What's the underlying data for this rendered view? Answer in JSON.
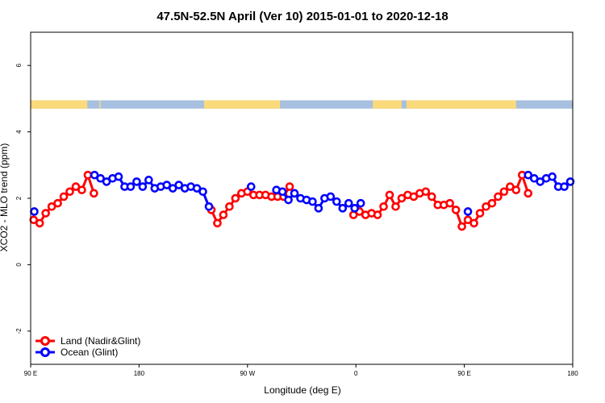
{
  "chart_data": {
    "type": "line",
    "title": "47.5N-52.5N April (Ver 10)   2015-01-01 to 2020-12-18",
    "xlabel": "Longitude (deg E)",
    "ylabel": "XCO2 - MLO trend (ppm)",
    "xlim": [
      90,
      540
    ],
    "ylim": [
      -3,
      7
    ],
    "x_ticks": [
      {
        "value": 90,
        "label": "90 E"
      },
      {
        "value": 180,
        "label": "180"
      },
      {
        "value": 270,
        "label": "90 W"
      },
      {
        "value": 360,
        "label": "0"
      },
      {
        "value": 450,
        "label": "90 E"
      },
      {
        "value": 540,
        "label": "180"
      }
    ],
    "y_ticks": [
      {
        "value": -2,
        "label": "-2"
      },
      {
        "value": 0,
        "label": "0"
      },
      {
        "value": 2,
        "label": "2"
      },
      {
        "value": 4,
        "label": "4"
      },
      {
        "value": 6,
        "label": "6"
      }
    ],
    "grid": false,
    "legend_position": "bottom-left",
    "series": [
      {
        "name": "Land (Nadir&Glint)",
        "color": "#ff0000",
        "points": [
          [
            92.5,
            1.35
          ],
          [
            97.5,
            1.25
          ],
          [
            102.5,
            1.55
          ],
          [
            107.5,
            1.75
          ],
          [
            112.5,
            1.85
          ],
          [
            117.5,
            2.05
          ],
          [
            122.5,
            2.2
          ],
          [
            127.5,
            2.35
          ],
          [
            132.5,
            2.25
          ],
          [
            137.5,
            2.7
          ],
          [
            142.5,
            2.15
          ],
          null,
          [
            240,
            1.65
          ],
          [
            245,
            1.25
          ],
          [
            250,
            1.5
          ],
          [
            255,
            1.75
          ],
          [
            260,
            2.0
          ],
          [
            265,
            2.15
          ],
          [
            270,
            2.2
          ],
          [
            275,
            2.1
          ],
          [
            280,
            2.1
          ],
          [
            285,
            2.1
          ],
          [
            290,
            2.05
          ],
          [
            295,
            2.05
          ],
          [
            300,
            2.05
          ],
          [
            305,
            2.35
          ],
          null,
          [
            358,
            1.5
          ],
          [
            363,
            1.6
          ],
          [
            368,
            1.5
          ],
          [
            373,
            1.55
          ],
          [
            378,
            1.5
          ],
          [
            383,
            1.75
          ],
          [
            388,
            2.1
          ],
          [
            393,
            1.75
          ],
          [
            398,
            2.0
          ],
          [
            403,
            2.1
          ],
          [
            408,
            2.05
          ],
          [
            413,
            2.15
          ],
          [
            418,
            2.2
          ],
          [
            423,
            2.05
          ],
          [
            428,
            1.8
          ],
          [
            433,
            1.8
          ],
          [
            438,
            1.85
          ],
          [
            443,
            1.65
          ],
          [
            448,
            1.15
          ],
          [
            453,
            1.35
          ],
          [
            458,
            1.25
          ],
          [
            463,
            1.55
          ],
          [
            468,
            1.75
          ],
          [
            473,
            1.85
          ],
          [
            478,
            2.05
          ],
          [
            483,
            2.2
          ],
          [
            488,
            2.35
          ],
          [
            493,
            2.25
          ],
          [
            498,
            2.7
          ],
          [
            503,
            2.15
          ]
        ]
      },
      {
        "name": "Ocean (Glint)",
        "color": "#0000ff",
        "points": [
          [
            93,
            1.6
          ],
          null,
          [
            143,
            2.7
          ],
          [
            148,
            2.6
          ],
          [
            153,
            2.5
          ],
          [
            158,
            2.6
          ],
          [
            163,
            2.65
          ],
          [
            168,
            2.35
          ],
          [
            173,
            2.35
          ],
          [
            178,
            2.5
          ],
          [
            183,
            2.35
          ],
          [
            188,
            2.55
          ],
          [
            193,
            2.3
          ],
          [
            198,
            2.35
          ],
          [
            203,
            2.4
          ],
          [
            208,
            2.3
          ],
          [
            213,
            2.4
          ],
          [
            218,
            2.3
          ],
          [
            223,
            2.35
          ],
          [
            228,
            2.3
          ],
          [
            233,
            2.2
          ],
          [
            238,
            1.75
          ],
          null,
          [
            273,
            2.35
          ],
          null,
          [
            294,
            2.25
          ],
          [
            299,
            2.2
          ],
          [
            304,
            1.95
          ],
          [
            309,
            2.15
          ],
          [
            314,
            2.0
          ],
          [
            319,
            1.95
          ],
          [
            324,
            1.9
          ],
          [
            329,
            1.7
          ],
          [
            334,
            2.0
          ],
          [
            339,
            2.05
          ],
          [
            344,
            1.9
          ],
          [
            349,
            1.7
          ],
          [
            354,
            1.85
          ],
          [
            359,
            1.7
          ],
          [
            364,
            1.85
          ],
          null,
          [
            453,
            1.6
          ],
          null,
          [
            503,
            2.7
          ],
          [
            508,
            2.6
          ],
          [
            513,
            2.5
          ],
          [
            518,
            2.6
          ],
          [
            523,
            2.65
          ],
          [
            528,
            2.35
          ],
          [
            533,
            2.35
          ],
          [
            538,
            2.5
          ]
        ]
      }
    ],
    "land_mask_band": {
      "y_range": [
        4.7,
        4.95
      ],
      "ocean_color": "#a8c0e0",
      "land_color": "#fada7a",
      "land_intervals_deg": [
        [
          90,
          137
        ],
        [
          147,
          148
        ],
        [
          234,
          297
        ],
        [
          374,
          398
        ],
        [
          402,
          493
        ]
      ]
    }
  }
}
